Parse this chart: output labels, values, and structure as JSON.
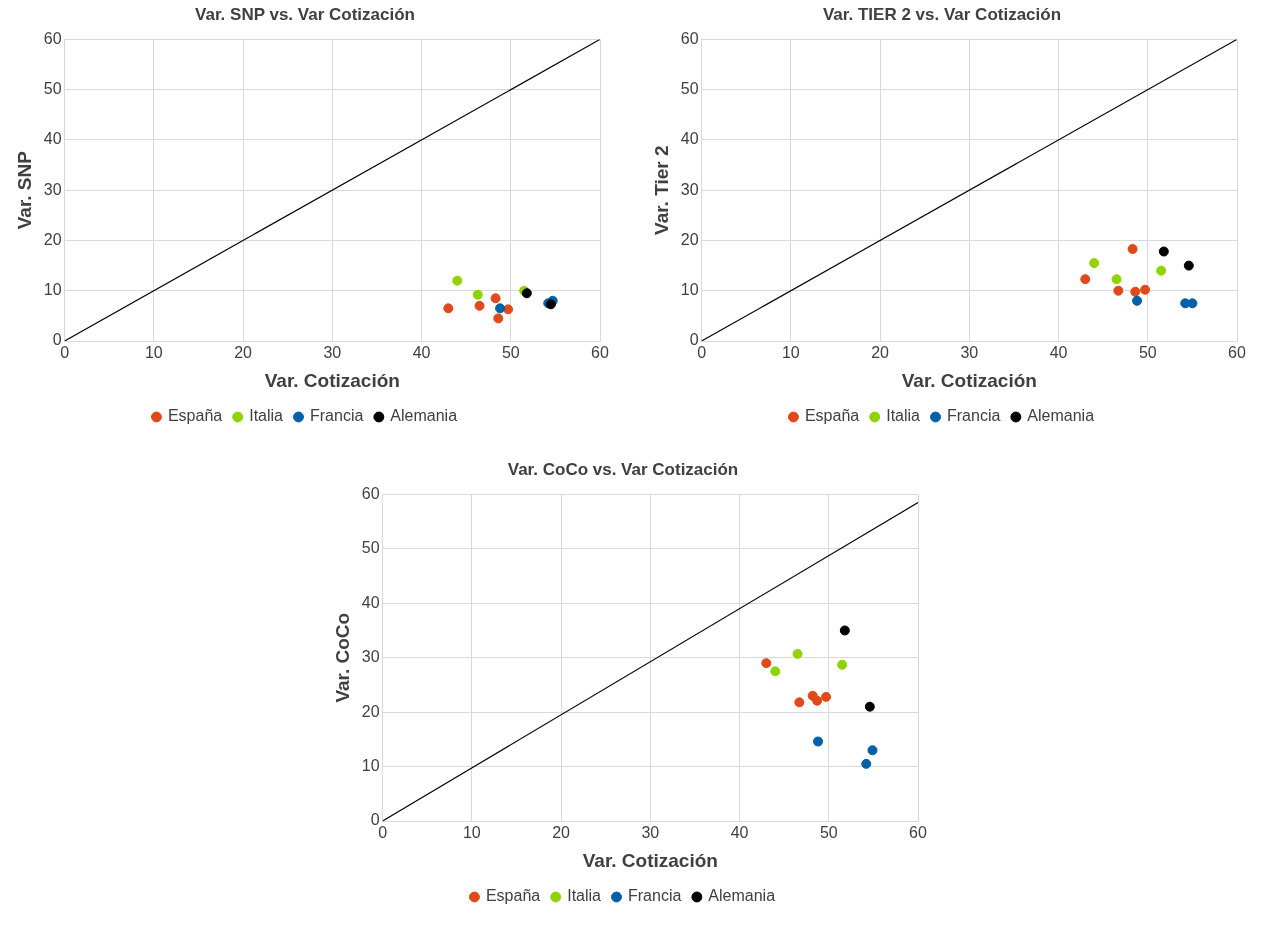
{
  "chart_data": [
    {
      "type": "scatter",
      "title": "Var. SNP vs. Var Cotización",
      "xlabel": "Var. Cotización",
      "ylabel": "Var. SNP",
      "xlim": [
        0,
        60
      ],
      "ylim": [
        0,
        60
      ],
      "xticks": [
        0,
        10,
        20,
        30,
        40,
        50,
        60
      ],
      "yticks": [
        0,
        10,
        20,
        30,
        40,
        50,
        60
      ],
      "grid": true,
      "legend": "bottom",
      "marker": "circle",
      "series": [
        {
          "name": "España",
          "color": "#e04a1a",
          "x": [
            43,
            46.5,
            48.3,
            48.6,
            49.7
          ],
          "values": [
            6.5,
            7,
            8.5,
            4.5,
            6.3
          ]
        },
        {
          "name": "Italia",
          "color": "#8fd400",
          "x": [
            44,
            46.3,
            51.5
          ],
          "values": [
            12,
            9.2,
            10
          ]
        },
        {
          "name": "Francia",
          "color": "#0060a8",
          "x": [
            48.8,
            54.2,
            54.7
          ],
          "values": [
            6.5,
            7.5,
            8
          ]
        },
        {
          "name": "Alemania",
          "color": "#000000",
          "x": [
            51.8,
            54.5
          ],
          "values": [
            9.5,
            7.3
          ]
        },
        {
          "type": "line",
          "color": "#000000",
          "x": [
            0,
            60
          ],
          "values": [
            0,
            60
          ],
          "marker": "none"
        }
      ]
    },
    {
      "type": "scatter",
      "title": "Var. TIER 2 vs. Var Cotización",
      "xlabel": "Var. Cotización",
      "ylabel": "Var. Tier 2",
      "xlim": [
        0,
        60
      ],
      "ylim": [
        0,
        60
      ],
      "xticks": [
        0,
        10,
        20,
        30,
        40,
        50,
        60
      ],
      "yticks": [
        0,
        10,
        20,
        30,
        40,
        50,
        60
      ],
      "grid": true,
      "legend": "bottom",
      "marker": "circle",
      "series": [
        {
          "name": "España",
          "color": "#e04a1a",
          "x": [
            43,
            46.7,
            48.3,
            48.6,
            49.7
          ],
          "values": [
            12.3,
            10,
            18.3,
            9.8,
            10.2
          ]
        },
        {
          "name": "Italia",
          "color": "#8fd400",
          "x": [
            44,
            46.5,
            51.5
          ],
          "values": [
            15.5,
            12.3,
            14
          ]
        },
        {
          "name": "Francia",
          "color": "#0060a8",
          "x": [
            48.8,
            54.2,
            55
          ],
          "values": [
            8,
            7.5,
            7.5
          ]
        },
        {
          "name": "Alemania",
          "color": "#000000",
          "x": [
            51.8,
            54.6
          ],
          "values": [
            17.8,
            15
          ]
        },
        {
          "type": "line",
          "color": "#000000",
          "x": [
            0,
            60
          ],
          "values": [
            0,
            60
          ],
          "marker": "none"
        }
      ]
    },
    {
      "type": "scatter",
      "title": "Var. CoCo vs. Var Cotización",
      "xlabel": "Var. Cotización",
      "ylabel": "Var. CoCo",
      "xlim": [
        0,
        60
      ],
      "ylim": [
        0,
        60
      ],
      "xticks": [
        0,
        10,
        20,
        30,
        40,
        50,
        60
      ],
      "yticks": [
        0,
        10,
        20,
        30,
        40,
        50,
        60
      ],
      "grid": true,
      "legend": "bottom",
      "marker": "circle",
      "series": [
        {
          "name": "España",
          "color": "#e04a1a",
          "x": [
            43,
            46.7,
            48.2,
            48.7,
            49.7
          ],
          "values": [
            29,
            21.8,
            23,
            22.1,
            22.8
          ]
        },
        {
          "name": "Italia",
          "color": "#8fd400",
          "x": [
            44,
            46.5,
            51.5
          ],
          "values": [
            27.5,
            30.7,
            28.7
          ]
        },
        {
          "name": "Francia",
          "color": "#0060a8",
          "x": [
            48.8,
            54.2,
            54.9
          ],
          "values": [
            14.6,
            10.5,
            13
          ]
        },
        {
          "name": "Alemania",
          "color": "#000000",
          "x": [
            51.8,
            54.6
          ],
          "values": [
            35,
            21
          ]
        },
        {
          "type": "line",
          "color": "#000000",
          "x": [
            0,
            60
          ],
          "values": [
            0,
            58.5
          ],
          "marker": "none"
        }
      ]
    }
  ]
}
